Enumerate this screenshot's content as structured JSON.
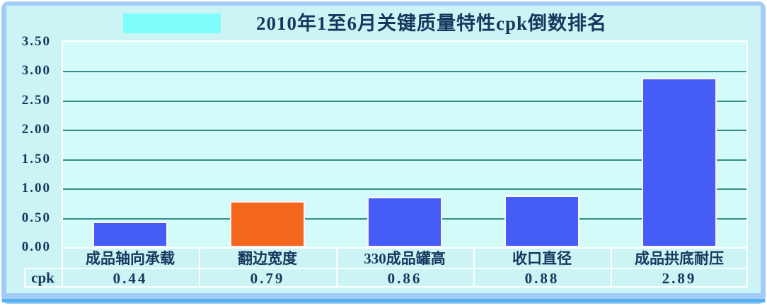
{
  "title": "2010年1至6月关键质量特性cpk倒数排名",
  "colors": {
    "frame": "#a3cbf7",
    "frame_accent": "#56b2ef",
    "surface": "#ccf4f5",
    "plot_bg": "#d2fbfa",
    "gridline": "#348e87",
    "text_navy": "#17375e",
    "bar_blue": "#465cf7",
    "bar_orange": "#f4661c",
    "title_highlight": "#82fdfd"
  },
  "chart_data": {
    "type": "bar",
    "title": "2010年1至6月关键质量特性cpk倒数排名",
    "categories": [
      "成品轴向承载",
      "翻边宽度",
      "330成品罐高",
      "收口直径",
      "成品拱底耐压"
    ],
    "series": [
      {
        "name": "cpk",
        "values": [
          0.44,
          0.79,
          0.86,
          0.88,
          2.89
        ]
      }
    ],
    "bar_colors": [
      "#465cf7",
      "#f4661c",
      "#465cf7",
      "#465cf7",
      "#465cf7"
    ],
    "ylim": [
      0,
      3.5
    ],
    "ytick_step": 0.5,
    "ytick_labels": [
      "3.50",
      "3.00",
      "2.50",
      "2.00",
      "1.50",
      "1.00",
      "0.50",
      "0.00"
    ],
    "grid": true,
    "legend_position": "none",
    "data_table": {
      "row_label": "cpk",
      "values": [
        "0.44",
        "0.79",
        "0.86",
        "0.88",
        "2.89"
      ]
    }
  }
}
